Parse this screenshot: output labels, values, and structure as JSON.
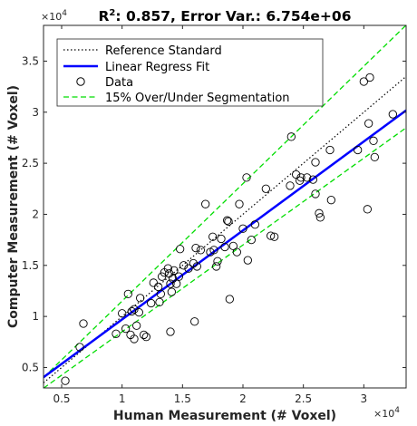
{
  "chart_data": {
    "type": "scatter",
    "title_prefix": "R",
    "title_sup": "2",
    "title_suffix": ": 0.857, Error Var.: 6.754e+06",
    "xlabel": "Human Measurement (# Voxel)",
    "ylabel": "Computer Measurement (# Voxel)",
    "x_multiplier": {
      "base": "×10",
      "exp": "4"
    },
    "y_multiplier": {
      "base": "×10",
      "exp": "4"
    },
    "xlim": [
      3500,
      33500
    ],
    "ylim": [
      3000,
      38500
    ],
    "xticks": [
      5000,
      10000,
      15000,
      20000,
      25000,
      30000
    ],
    "xtick_labels": [
      "0.5",
      "1",
      "1.5",
      "2",
      "2.5",
      "3"
    ],
    "yticks": [
      5000,
      10000,
      15000,
      20000,
      25000,
      30000,
      35000
    ],
    "ytick_labels": [
      "0.5",
      "1",
      "1.5",
      "2",
      "2.5",
      "3",
      "3.5"
    ],
    "grid": false,
    "legend_position": "top-left",
    "legend": [
      "Reference Standard",
      "Linear Regress Fit",
      "Data",
      "15% Over/Under Segmentation"
    ],
    "colors": {
      "reference": "#000000",
      "fit": "#0000ff",
      "data": "#000000",
      "band": "#00dd00"
    },
    "reference_line": {
      "slope": 1.0,
      "intercept": 0
    },
    "fit_line": {
      "slope": 0.871,
      "intercept": 1000
    },
    "band_slopes": [
      1.15,
      0.85
    ],
    "points": [
      [
        5300,
        3700
      ],
      [
        6500,
        7000
      ],
      [
        6800,
        9300
      ],
      [
        9500,
        8300
      ],
      [
        10000,
        10300
      ],
      [
        10300,
        8800
      ],
      [
        10500,
        12200
      ],
      [
        10700,
        8200
      ],
      [
        10800,
        10500
      ],
      [
        11000,
        10700
      ],
      [
        11000,
        7800
      ],
      [
        11200,
        9100
      ],
      [
        11400,
        10400
      ],
      [
        11500,
        11800
      ],
      [
        11800,
        8200
      ],
      [
        12000,
        8000
      ],
      [
        12400,
        11300
      ],
      [
        12600,
        13300
      ],
      [
        13000,
        12900
      ],
      [
        13100,
        11400
      ],
      [
        13200,
        12200
      ],
      [
        13300,
        13900
      ],
      [
        13500,
        14300
      ],
      [
        13800,
        14700
      ],
      [
        13900,
        14200
      ],
      [
        14000,
        8500
      ],
      [
        14000,
        13200
      ],
      [
        14100,
        12400
      ],
      [
        14200,
        13700
      ],
      [
        14300,
        14500
      ],
      [
        14500,
        13200
      ],
      [
        14700,
        13900
      ],
      [
        14800,
        16600
      ],
      [
        15100,
        15000
      ],
      [
        15500,
        14700
      ],
      [
        15900,
        15200
      ],
      [
        16000,
        9500
      ],
      [
        16100,
        16700
      ],
      [
        16200,
        14900
      ],
      [
        16500,
        16500
      ],
      [
        16900,
        21000
      ],
      [
        17300,
        16300
      ],
      [
        17500,
        17800
      ],
      [
        17600,
        16500
      ],
      [
        17800,
        14900
      ],
      [
        17900,
        15400
      ],
      [
        18200,
        17600
      ],
      [
        18500,
        16800
      ],
      [
        18700,
        19400
      ],
      [
        18800,
        19300
      ],
      [
        18900,
        11700
      ],
      [
        19200,
        16900
      ],
      [
        19500,
        16300
      ],
      [
        19700,
        21000
      ],
      [
        20000,
        18600
      ],
      [
        20300,
        23600
      ],
      [
        20400,
        15500
      ],
      [
        20700,
        17500
      ],
      [
        21000,
        19000
      ],
      [
        21900,
        22500
      ],
      [
        22300,
        17900
      ],
      [
        22600,
        17800
      ],
      [
        23900,
        22800
      ],
      [
        24000,
        27600
      ],
      [
        24400,
        23900
      ],
      [
        24700,
        23300
      ],
      [
        24800,
        23600
      ],
      [
        25300,
        23600
      ],
      [
        25800,
        23400
      ],
      [
        26000,
        25100
      ],
      [
        26000,
        22000
      ],
      [
        26300,
        20100
      ],
      [
        26400,
        19700
      ],
      [
        27200,
        26300
      ],
      [
        27300,
        21400
      ],
      [
        29500,
        26300
      ],
      [
        30000,
        33000
      ],
      [
        30300,
        20500
      ],
      [
        30400,
        28900
      ],
      [
        30500,
        33400
      ],
      [
        30800,
        27200
      ],
      [
        30900,
        25600
      ],
      [
        32400,
        29800
      ]
    ]
  }
}
